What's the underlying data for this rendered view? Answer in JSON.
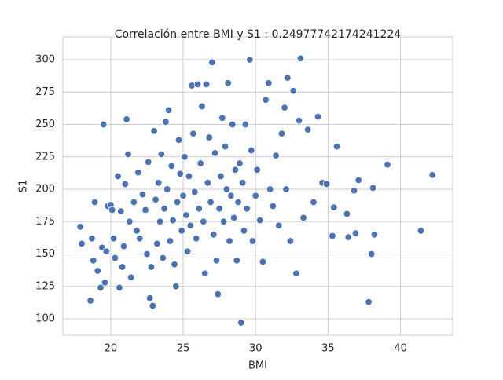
{
  "chart_data": {
    "type": "scatter",
    "title": "Correlación entre BMI y S1 : 0.24977742174241224",
    "x_label": "BMI",
    "y_label": "S1",
    "color": "#4c72b0",
    "grid": true,
    "xlim": [
      16.7,
      43.6
    ],
    "ylim": [
      87.3,
      317.6
    ],
    "xticks": [
      20,
      25,
      30,
      35,
      40
    ],
    "yticks": [
      100,
      125,
      150,
      175,
      200,
      225,
      250,
      275,
      300
    ],
    "x": [
      17.9,
      18.0,
      18.6,
      18.8,
      18.9,
      18.7,
      19.1,
      19.3,
      19.5,
      19.6,
      19.4,
      19.8,
      19.7,
      20.0,
      20.2,
      20.1,
      20.3,
      20.5,
      20.6,
      20.7,
      20.8,
      20.9,
      21.1,
      21.0,
      21.2,
      21.3,
      21.4,
      21.6,
      21.9,
      21.8,
      22.0,
      22.2,
      22.4,
      22.5,
      22.6,
      22.8,
      22.9,
      22.7,
      23.0,
      23.1,
      23.3,
      23.4,
      23.2,
      23.5,
      23.6,
      23.7,
      23.8,
      23.9,
      24.0,
      24.1,
      24.2,
      24.3,
      24.5,
      24.4,
      24.6,
      24.7,
      24.8,
      24.9,
      25.0,
      25.1,
      25.2,
      25.3,
      25.4,
      25.5,
      25.6,
      25.7,
      25.8,
      25.9,
      26.0,
      26.1,
      26.2,
      26.3,
      26.4,
      26.5,
      26.6,
      26.7,
      26.8,
      26.9,
      27.0,
      27.1,
      27.2,
      27.3,
      27.4,
      27.5,
      27.6,
      27.7,
      27.8,
      27.9,
      28.0,
      28.1,
      28.2,
      28.3,
      28.4,
      28.5,
      28.6,
      28.7,
      28.8,
      28.9,
      29.0,
      29.1,
      29.2,
      29.3,
      29.4,
      29.6,
      29.7,
      29.8,
      30.0,
      30.1,
      30.3,
      30.5,
      30.7,
      30.9,
      31.0,
      31.2,
      31.4,
      31.6,
      31.8,
      32.0,
      32.1,
      32.2,
      32.4,
      32.6,
      32.8,
      33.0,
      33.1,
      33.3,
      33.6,
      34.0,
      34.3,
      34.6,
      34.9,
      35.3,
      35.4,
      35.6,
      36.3,
      36.4,
      36.8,
      36.9,
      37.1,
      37.8,
      38.0,
      38.1,
      38.2,
      39.1,
      41.4,
      42.2
    ],
    "values": [
      171,
      158,
      114,
      145,
      190,
      162,
      137,
      124,
      250,
      128,
      155,
      187,
      152,
      188,
      162,
      184,
      147,
      210,
      124,
      183,
      140,
      156,
      254,
      204,
      227,
      175,
      132,
      190,
      213,
      168,
      162,
      196,
      184,
      150,
      221,
      140,
      110,
      116,
      245,
      192,
      205,
      175,
      158,
      227,
      147,
      185,
      252,
      200,
      261,
      160,
      218,
      176,
      125,
      142,
      190,
      238,
      212,
      168,
      195,
      225,
      180,
      152,
      210,
      172,
      280,
      243,
      198,
      162,
      281,
      185,
      220,
      264,
      175,
      135,
      281,
      205,
      240,
      190,
      298,
      165,
      228,
      145,
      119,
      185,
      210,
      255,
      175,
      233,
      200,
      282,
      160,
      195,
      250,
      178,
      215,
      145,
      190,
      220,
      97,
      205,
      168,
      250,
      185,
      300,
      230,
      160,
      195,
      215,
      176,
      144,
      269,
      282,
      200,
      187,
      226,
      172,
      243,
      263,
      200,
      286,
      160,
      276,
      135,
      253,
      301,
      178,
      246,
      190,
      256,
      205,
      204,
      164,
      186,
      233,
      181,
      163,
      199,
      166,
      207,
      113,
      150,
      201,
      165,
      219,
      168,
      211
    ]
  }
}
